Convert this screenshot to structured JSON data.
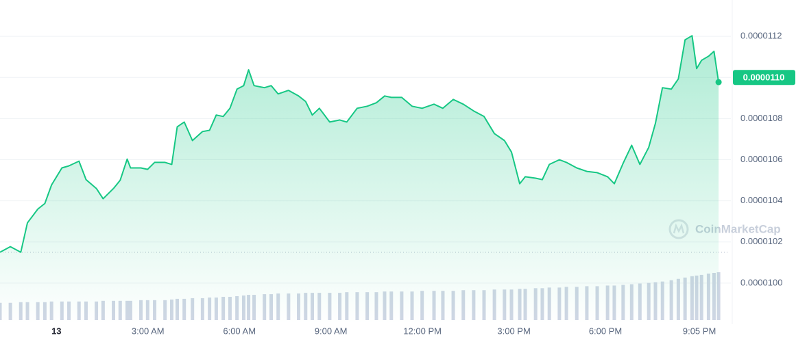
{
  "chart_data": {
    "type": "line",
    "color": "#16c784",
    "x": [
      -1.85,
      -1.51,
      -1.17,
      -0.95,
      -0.61,
      -0.38,
      -0.16,
      0.18,
      0.41,
      0.74,
      0.97,
      1.31,
      1.53,
      1.87,
      2.09,
      2.32,
      2.43,
      2.77,
      2.99,
      3.22,
      3.56,
      3.78,
      3.96,
      4.19,
      4.46,
      4.79,
      5.02,
      5.24,
      5.47,
      5.69,
      5.92,
      6.14,
      6.3,
      6.48,
      6.82,
      7.04,
      7.27,
      7.61,
      7.94,
      8.17,
      8.39,
      8.62,
      8.96,
      9.29,
      9.52,
      9.86,
      10.19,
      10.49,
      10.76,
      10.98,
      11.32,
      11.66,
      11.99,
      12.38,
      12.67,
      13.01,
      13.34,
      13.68,
      14.02,
      14.36,
      14.69,
      14.92,
      15.19,
      15.37,
      15.71,
      15.93,
      16.16,
      16.49,
      16.72,
      17.06,
      17.39,
      17.73,
      18.07,
      18.29,
      18.58,
      18.86,
      19.13,
      19.42,
      19.64,
      19.87,
      20.16,
      20.39,
      20.61,
      20.84,
      20.99,
      21.15,
      21.38,
      21.56,
      21.71
    ],
    "values": [
      1.015e-05,
      1.0177e-05,
      1.015e-05,
      1.0293e-05,
      1.036e-05,
      1.0387e-05,
      1.0477e-05,
      1.056e-05,
      1.057e-05,
      1.0593e-05,
      1.0503e-05,
      1.046e-05,
      1.041e-05,
      1.046e-05,
      1.05e-05,
      1.0603e-05,
      1.056e-05,
      1.056e-05,
      1.0553e-05,
      1.0587e-05,
      1.0587e-05,
      1.0577e-05,
      1.076e-05,
      1.0783e-05,
      1.0693e-05,
      1.0737e-05,
      1.0743e-05,
      1.0817e-05,
      1.081e-05,
      1.085e-05,
      1.0943e-05,
      1.096e-05,
      1.1037e-05,
      1.096e-05,
      1.095e-05,
      1.096e-05,
      1.092e-05,
      1.0937e-05,
      1.091e-05,
      1.0883e-05,
      1.0817e-05,
      1.085e-05,
      1.0783e-05,
      1.0793e-05,
      1.0783e-05,
      1.085e-05,
      1.086e-05,
      1.0877e-05,
      1.091e-05,
      1.0903e-05,
      1.0903e-05,
      1.086e-05,
      1.085e-05,
      1.087e-05,
      1.085e-05,
      1.0893e-05,
      1.087e-05,
      1.0837e-05,
      1.081e-05,
      1.0727e-05,
      1.0693e-05,
      1.0637e-05,
      1.0483e-05,
      1.0517e-05,
      1.051e-05,
      1.0503e-05,
      1.0577e-05,
      1.06e-05,
      1.0587e-05,
      1.056e-05,
      1.0543e-05,
      1.0537e-05,
      1.0517e-05,
      1.0483e-05,
      1.0583e-05,
      1.067e-05,
      1.0577e-05,
      1.066e-05,
      1.0777e-05,
      1.095e-05,
      1.0943e-05,
      1.0993e-05,
      1.1183e-05,
      1.1203e-05,
      1.1043e-05,
      1.1083e-05,
      1.1103e-05,
      1.1127e-05,
      1.0977e-05
    ],
    "volume": [
      26,
      26,
      27,
      27,
      27,
      27,
      28,
      28,
      28,
      28,
      28,
      28,
      29,
      29,
      29,
      29,
      29,
      30,
      30,
      30,
      30,
      31,
      32,
      32,
      33,
      33,
      34,
      34,
      35,
      35,
      36,
      37,
      38,
      38,
      39,
      39,
      40,
      40,
      40,
      41,
      41,
      41,
      41,
      41,
      42,
      42,
      42,
      42,
      43,
      43,
      43,
      43,
      44,
      44,
      44,
      44,
      45,
      45,
      45,
      46,
      46,
      46,
      47,
      47,
      48,
      48,
      49,
      49,
      50,
      50,
      51,
      51,
      52,
      52,
      53,
      54,
      55,
      56,
      57,
      58,
      60,
      62,
      64,
      66,
      67,
      68,
      70,
      71,
      72
    ],
    "volume_color": "#cfd6e4",
    "xlim": [
      -1.85,
      22
    ],
    "xticks": [
      {
        "value": 0,
        "label": "13"
      },
      {
        "value": 3,
        "label": "3:00 AM"
      },
      {
        "value": 6,
        "label": "6:00 AM"
      },
      {
        "value": 9,
        "label": "9:00 AM"
      },
      {
        "value": 12,
        "label": "12:00 PM"
      },
      {
        "value": 15,
        "label": "3:00 PM"
      },
      {
        "value": 18,
        "label": "6:00 PM"
      },
      {
        "value": 21.08,
        "label": "9:05 PM"
      }
    ],
    "ylim": [
      9.8e-06,
      1.13e-05
    ],
    "yticks": [
      {
        "value": 1e-05,
        "label": "0.0000100"
      },
      {
        "value": 1.02e-05,
        "label": "0.0000102"
      },
      {
        "value": 1.04e-05,
        "label": "0.0000104"
      },
      {
        "value": 1.06e-05,
        "label": "0.0000106"
      },
      {
        "value": 1.08e-05,
        "label": "0.0000108"
      },
      {
        "value": 1.1e-05,
        "label": "0.0000110"
      },
      {
        "value": 1.12e-05,
        "label": "0.0000112"
      }
    ],
    "grid": true,
    "current_price": {
      "value": 1.1e-05,
      "label": "0.0000110"
    },
    "watermark": "CoinMarketCap"
  }
}
